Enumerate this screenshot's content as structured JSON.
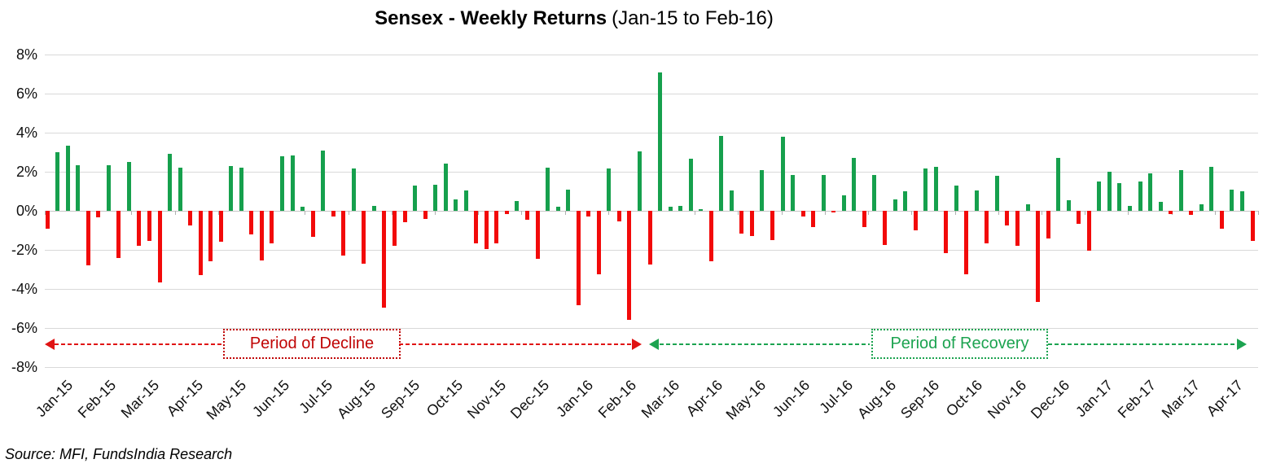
{
  "title": {
    "main": "Sensex - Weekly Returns",
    "suffix": "(Jan-15 to Feb-16)"
  },
  "source": "Source: MFI, FundsIndia Research",
  "annotations": {
    "decline": {
      "label": "Period of Decline",
      "color": "#C00505"
    },
    "recovery": {
      "label": "Period of Recovery",
      "color": "#1CA350"
    }
  },
  "colors": {
    "positive_bar": "#16A04D",
    "negative_bar": "#F20A0A",
    "gridline": "#D9D9D9"
  },
  "chart_data": {
    "type": "bar",
    "title": "Sensex - Weekly Returns (Jan-15 to Feb-16)",
    "xlabel": "",
    "ylabel": "",
    "unit": "%",
    "ylim": [
      -8,
      8
    ],
    "grid": true,
    "y_tick_labels": [
      "8%",
      "6%",
      "4%",
      "2%",
      "0%",
      "-2%",
      "-4%",
      "-6%",
      "-8%"
    ],
    "x_tick_labels": [
      "Jan-15",
      "Feb-15",
      "Mar-15",
      "Apr-15",
      "May-15",
      "Jun-15",
      "Jul-15",
      "Aug-15",
      "Sep-15",
      "Oct-15",
      "Nov-15",
      "Dec-15",
      "Jan-16",
      "Feb-16",
      "Mar-16",
      "Apr-16",
      "May-16",
      "Jun-16",
      "Jul-16",
      "Aug-16",
      "Sep-16",
      "Oct-16",
      "Nov-16",
      "Dec-16",
      "Jan-17",
      "Feb-17",
      "Mar-17",
      "Apr-17"
    ],
    "series_name": "Weekly return (%)",
    "values": [
      -0.9,
      3.0,
      3.35,
      2.35,
      -2.8,
      -0.35,
      2.35,
      -2.4,
      2.5,
      -1.8,
      -1.55,
      -3.65,
      2.9,
      2.2,
      -0.75,
      -3.3,
      -2.6,
      -1.6,
      2.3,
      2.2,
      -1.2,
      -2.55,
      -1.65,
      2.8,
      2.85,
      0.2,
      -1.35,
      3.1,
      -0.3,
      -2.3,
      2.15,
      -2.7,
      0.25,
      -4.95,
      -1.8,
      -0.6,
      1.3,
      -0.4,
      1.35,
      2.4,
      0.6,
      1.05,
      -1.65,
      -1.95,
      -1.65,
      -0.15,
      0.5,
      -0.45,
      -2.45,
      2.2,
      0.2,
      1.1,
      -4.85,
      -0.3,
      -3.25,
      2.15,
      -0.55,
      -5.6,
      3.05,
      -2.75,
      7.1,
      0.2,
      0.25,
      2.65,
      0.1,
      -2.6,
      3.85,
      1.05,
      -1.15,
      -1.3,
      2.1,
      -1.5,
      3.8,
      1.85,
      -0.3,
      -0.85,
      1.85,
      -0.1,
      0.8,
      2.7,
      -0.85,
      1.85,
      -1.75,
      0.6,
      1.0,
      -1.0,
      2.15,
      2.25,
      -2.15,
      1.3,
      -3.25,
      1.05,
      -1.65,
      1.8,
      -0.75,
      -1.8,
      0.35,
      -4.65,
      -1.4,
      2.7,
      0.55,
      -0.65,
      -2.05,
      1.5,
      2.0,
      1.4,
      0.25,
      1.5,
      1.9,
      0.45,
      -0.15,
      2.1,
      -0.2,
      0.35,
      2.25,
      -0.9,
      1.1,
      1.0,
      -1.55
    ],
    "annotations": [
      "Period of Decline",
      "Period of Recovery"
    ],
    "legend": "none"
  }
}
